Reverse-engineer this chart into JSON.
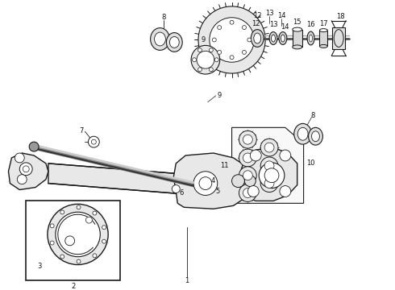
{
  "bg_color": "#ffffff",
  "fig_width": 4.9,
  "fig_height": 3.6,
  "dpi": 100,
  "line_color": "#1a1a1a",
  "label_fontsize": 6.0,
  "label_color": "#111111"
}
